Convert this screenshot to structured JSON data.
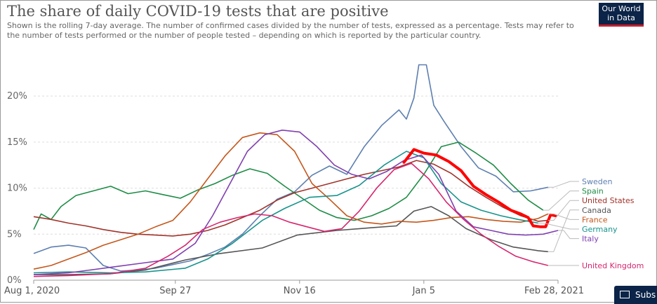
{
  "header": {
    "title": "The share of daily COVID-19 tests that are positive",
    "subtitle": "Shown is the rolling 7-day average. The number of confirmed cases divided by the number of tests, expressed as a percentage. Tests may refer to the number of tests performed or the number of people tested – depending on which is reported by the particular country.",
    "logo": "Our World in Data"
  },
  "subscribe_label": "Subs",
  "chart_data": {
    "type": "line",
    "title": "The share of daily COVID-19 tests that are positive",
    "ylabel": "",
    "xlabel": "",
    "x_range": [
      "2020-08-01",
      "2021-02-28"
    ],
    "x_ticks": [
      {
        "date": "2020-08-01",
        "label": "Aug 1, 2020"
      },
      {
        "date": "2020-09-27",
        "label": "Sep 27"
      },
      {
        "date": "2020-11-16",
        "label": "Nov 16"
      },
      {
        "date": "2021-01-05",
        "label": "Jan 5"
      },
      {
        "date": "2021-02-28",
        "label": "Feb 28, 2021"
      }
    ],
    "y_ticks": [
      {
        "value": 0,
        "label": "0%"
      },
      {
        "value": 5,
        "label": "5%"
      },
      {
        "value": 10,
        "label": "10%"
      },
      {
        "value": 15,
        "label": "15%"
      },
      {
        "value": 20,
        "label": "20%"
      }
    ],
    "ylim": [
      0,
      24.5
    ],
    "grid": true,
    "legend_position": "right",
    "series": [
      {
        "name": "Sweden",
        "color": "#5d7fb0",
        "points": [
          [
            "2020-08-01",
            2.9
          ],
          [
            "2020-08-08",
            3.6
          ],
          [
            "2020-08-15",
            3.8
          ],
          [
            "2020-08-22",
            3.5
          ],
          [
            "2020-08-29",
            1.6
          ],
          [
            "2020-09-05",
            1.0
          ],
          [
            "2020-09-12",
            1.1
          ],
          [
            "2020-09-19",
            1.3
          ],
          [
            "2020-09-26",
            1.7
          ],
          [
            "2020-10-03",
            2.1
          ],
          [
            "2020-10-10",
            2.8
          ],
          [
            "2020-10-17",
            3.6
          ],
          [
            "2020-10-24",
            5.0
          ],
          [
            "2020-10-31",
            7.0
          ],
          [
            "2020-11-07",
            8.8
          ],
          [
            "2020-11-14",
            9.6
          ],
          [
            "2020-11-21",
            11.4
          ],
          [
            "2020-11-28",
            12.4
          ],
          [
            "2020-12-05",
            11.5
          ],
          [
            "2020-12-12",
            14.5
          ],
          [
            "2020-12-19",
            16.8
          ],
          [
            "2020-12-26",
            18.5
          ],
          [
            "2020-12-29",
            17.5
          ],
          [
            "2021-01-01",
            19.8
          ],
          [
            "2021-01-03",
            23.4
          ],
          [
            "2021-01-06",
            23.4
          ],
          [
            "2021-01-09",
            19.0
          ],
          [
            "2021-01-13",
            17.3
          ],
          [
            "2021-01-20",
            14.5
          ],
          [
            "2021-01-27",
            12.2
          ],
          [
            "2021-02-03",
            11.3
          ],
          [
            "2021-02-10",
            9.6
          ],
          [
            "2021-02-17",
            9.7
          ],
          [
            "2021-02-24",
            10.1
          ]
        ]
      },
      {
        "name": "Spain",
        "color": "#1e8c46",
        "points": [
          [
            "2020-08-01",
            5.5
          ],
          [
            "2020-08-04",
            7.2
          ],
          [
            "2020-08-08",
            6.6
          ],
          [
            "2020-08-12",
            8.0
          ],
          [
            "2020-08-18",
            9.2
          ],
          [
            "2020-08-25",
            9.7
          ],
          [
            "2020-09-01",
            10.2
          ],
          [
            "2020-09-08",
            9.4
          ],
          [
            "2020-09-15",
            9.7
          ],
          [
            "2020-09-22",
            9.3
          ],
          [
            "2020-09-29",
            8.9
          ],
          [
            "2020-10-06",
            9.8
          ],
          [
            "2020-10-13",
            10.5
          ],
          [
            "2020-10-20",
            11.4
          ],
          [
            "2020-10-27",
            12.1
          ],
          [
            "2020-11-03",
            11.6
          ],
          [
            "2020-11-10",
            10.2
          ],
          [
            "2020-11-17",
            8.9
          ],
          [
            "2020-11-24",
            7.6
          ],
          [
            "2020-12-01",
            6.8
          ],
          [
            "2020-12-08",
            6.5
          ],
          [
            "2020-12-15",
            7.0
          ],
          [
            "2020-12-22",
            7.8
          ],
          [
            "2020-12-29",
            9.0
          ],
          [
            "2021-01-05",
            11.5
          ],
          [
            "2021-01-12",
            14.5
          ],
          [
            "2021-01-19",
            15.0
          ],
          [
            "2021-01-26",
            13.8
          ],
          [
            "2021-02-02",
            12.5
          ],
          [
            "2021-02-09",
            10.5
          ],
          [
            "2021-02-16",
            8.7
          ],
          [
            "2021-02-22",
            7.6
          ]
        ]
      },
      {
        "name": "United States",
        "color": "#a0342b",
        "points": [
          [
            "2020-08-01",
            6.9
          ],
          [
            "2020-08-08",
            6.6
          ],
          [
            "2020-08-15",
            6.2
          ],
          [
            "2020-08-22",
            5.9
          ],
          [
            "2020-08-29",
            5.5
          ],
          [
            "2020-09-05",
            5.2
          ],
          [
            "2020-09-12",
            5.0
          ],
          [
            "2020-09-19",
            4.9
          ],
          [
            "2020-09-26",
            4.8
          ],
          [
            "2020-10-03",
            5.0
          ],
          [
            "2020-10-10",
            5.4
          ],
          [
            "2020-10-17",
            6.0
          ],
          [
            "2020-10-24",
            6.8
          ],
          [
            "2020-10-31",
            7.6
          ],
          [
            "2020-11-07",
            8.7
          ],
          [
            "2020-11-14",
            9.5
          ],
          [
            "2020-11-21",
            10.0
          ],
          [
            "2020-11-28",
            10.5
          ],
          [
            "2020-12-05",
            11.0
          ],
          [
            "2020-12-12",
            11.5
          ],
          [
            "2020-12-19",
            11.9
          ],
          [
            "2020-12-26",
            12.3
          ],
          [
            "2021-01-02",
            13.0
          ],
          [
            "2021-01-09",
            12.6
          ],
          [
            "2021-01-16",
            11.6
          ],
          [
            "2021-01-23",
            10.2
          ],
          [
            "2021-01-30",
            9.0
          ],
          [
            "2021-02-06",
            7.9
          ],
          [
            "2021-02-13",
            7.0
          ],
          [
            "2021-02-20",
            6.4
          ],
          [
            "2021-02-24",
            6.5
          ]
        ]
      },
      {
        "name": "Canada",
        "color": "#555555",
        "points": [
          [
            "2020-08-01",
            0.6
          ],
          [
            "2020-08-15",
            0.6
          ],
          [
            "2020-09-01",
            0.7
          ],
          [
            "2020-09-15",
            1.1
          ],
          [
            "2020-10-01",
            2.2
          ],
          [
            "2020-10-15",
            2.9
          ],
          [
            "2020-11-01",
            3.5
          ],
          [
            "2020-11-15",
            4.9
          ],
          [
            "2020-12-01",
            5.4
          ],
          [
            "2020-12-15",
            5.7
          ],
          [
            "2020-12-25",
            5.9
          ],
          [
            "2021-01-01",
            7.5
          ],
          [
            "2021-01-08",
            8.0
          ],
          [
            "2021-01-15",
            7.0
          ],
          [
            "2021-01-22",
            5.6
          ],
          [
            "2021-02-01",
            4.4
          ],
          [
            "2021-02-10",
            3.6
          ],
          [
            "2021-02-20",
            3.2
          ],
          [
            "2021-02-24",
            3.1
          ]
        ]
      },
      {
        "name": "France",
        "color": "#c4571c",
        "points": [
          [
            "2020-08-01",
            1.2
          ],
          [
            "2020-08-08",
            1.6
          ],
          [
            "2020-08-15",
            2.3
          ],
          [
            "2020-08-22",
            3.0
          ],
          [
            "2020-08-29",
            3.8
          ],
          [
            "2020-09-05",
            4.4
          ],
          [
            "2020-09-12",
            5.0
          ],
          [
            "2020-09-19",
            5.8
          ],
          [
            "2020-09-26",
            6.5
          ],
          [
            "2020-10-03",
            8.5
          ],
          [
            "2020-10-10",
            11.0
          ],
          [
            "2020-10-17",
            13.5
          ],
          [
            "2020-10-24",
            15.5
          ],
          [
            "2020-10-31",
            16.0
          ],
          [
            "2020-11-07",
            15.8
          ],
          [
            "2020-11-14",
            14.0
          ],
          [
            "2020-11-21",
            10.5
          ],
          [
            "2020-11-28",
            8.8
          ],
          [
            "2020-12-05",
            7.0
          ],
          [
            "2020-12-12",
            6.3
          ],
          [
            "2020-12-19",
            6.1
          ],
          [
            "2020-12-26",
            6.4
          ],
          [
            "2021-01-02",
            6.3
          ],
          [
            "2021-01-09",
            6.5
          ],
          [
            "2021-01-16",
            6.8
          ],
          [
            "2021-01-23",
            6.9
          ],
          [
            "2021-01-30",
            6.6
          ],
          [
            "2021-02-06",
            6.4
          ],
          [
            "2021-02-13",
            6.3
          ],
          [
            "2021-02-20",
            6.7
          ],
          [
            "2021-02-24",
            7.2
          ]
        ]
      },
      {
        "name": "Germany",
        "color": "#17938c",
        "points": [
          [
            "2020-08-01",
            0.8
          ],
          [
            "2020-08-15",
            0.9
          ],
          [
            "2020-09-01",
            0.8
          ],
          [
            "2020-09-15",
            0.9
          ],
          [
            "2020-10-01",
            1.3
          ],
          [
            "2020-10-10",
            2.3
          ],
          [
            "2020-10-20",
            4.0
          ],
          [
            "2020-11-01",
            6.5
          ],
          [
            "2020-11-10",
            7.8
          ],
          [
            "2020-11-20",
            9.0
          ],
          [
            "2020-12-01",
            9.2
          ],
          [
            "2020-12-10",
            10.3
          ],
          [
            "2020-12-20",
            12.5
          ],
          [
            "2020-12-29",
            14.0
          ],
          [
            "2021-01-05",
            13.3
          ],
          [
            "2021-01-12",
            10.5
          ],
          [
            "2021-01-20",
            8.5
          ],
          [
            "2021-01-28",
            7.6
          ],
          [
            "2021-02-05",
            7.0
          ],
          [
            "2021-02-12",
            6.6
          ],
          [
            "2021-02-20",
            6.2
          ]
        ]
      },
      {
        "name": "Italy",
        "color": "#8040b0",
        "points": [
          [
            "2020-08-01",
            0.6
          ],
          [
            "2020-08-15",
            0.8
          ],
          [
            "2020-09-01",
            1.4
          ],
          [
            "2020-09-15",
            1.9
          ],
          [
            "2020-09-26",
            2.3
          ],
          [
            "2020-10-05",
            4.0
          ],
          [
            "2020-10-12",
            7.0
          ],
          [
            "2020-10-19",
            10.5
          ],
          [
            "2020-10-26",
            14.0
          ],
          [
            "2020-11-02",
            15.8
          ],
          [
            "2020-11-09",
            16.3
          ],
          [
            "2020-11-16",
            16.1
          ],
          [
            "2020-11-23",
            14.5
          ],
          [
            "2020-11-30",
            12.5
          ],
          [
            "2020-12-07",
            11.5
          ],
          [
            "2020-12-14",
            11.0
          ],
          [
            "2020-12-21",
            11.8
          ],
          [
            "2020-12-28",
            13.0
          ],
          [
            "2021-01-04",
            13.6
          ],
          [
            "2021-01-11",
            11.5
          ],
          [
            "2021-01-18",
            7.5
          ],
          [
            "2021-01-25",
            5.8
          ],
          [
            "2021-02-01",
            5.4
          ],
          [
            "2021-02-08",
            5.0
          ],
          [
            "2021-02-15",
            4.9
          ],
          [
            "2021-02-22",
            5.0
          ],
          [
            "2021-02-28",
            5.4
          ]
        ]
      },
      {
        "name": "United Kingdom",
        "color": "#d6266e",
        "points": [
          [
            "2020-08-01",
            0.4
          ],
          [
            "2020-08-15",
            0.5
          ],
          [
            "2020-09-01",
            0.7
          ],
          [
            "2020-09-15",
            1.3
          ],
          [
            "2020-09-24",
            2.6
          ],
          [
            "2020-10-01",
            3.8
          ],
          [
            "2020-10-08",
            5.5
          ],
          [
            "2020-10-15",
            6.3
          ],
          [
            "2020-10-22",
            6.8
          ],
          [
            "2020-10-29",
            7.2
          ],
          [
            "2020-11-05",
            7.0
          ],
          [
            "2020-11-12",
            6.3
          ],
          [
            "2020-11-19",
            5.8
          ],
          [
            "2020-11-26",
            5.3
          ],
          [
            "2020-12-03",
            5.6
          ],
          [
            "2020-12-10",
            7.5
          ],
          [
            "2020-12-17",
            10.0
          ],
          [
            "2020-12-24",
            12.0
          ],
          [
            "2020-12-31",
            12.7
          ],
          [
            "2021-01-07",
            11.0
          ],
          [
            "2021-01-14",
            8.5
          ],
          [
            "2021-01-21",
            6.6
          ],
          [
            "2021-01-28",
            5.0
          ],
          [
            "2021-02-04",
            3.7
          ],
          [
            "2021-02-11",
            2.6
          ],
          [
            "2021-02-18",
            2.0
          ],
          [
            "2021-02-24",
            1.6
          ]
        ]
      }
    ],
    "annotation": {
      "color": "#ff0000",
      "points": [
        [
          "2020-12-28",
          12.8
        ],
        [
          "2021-01-01",
          14.2
        ],
        [
          "2021-01-05",
          13.8
        ],
        [
          "2021-01-10",
          13.6
        ],
        [
          "2021-01-15",
          12.9
        ],
        [
          "2021-01-20",
          11.9
        ],
        [
          "2021-01-25",
          10.2
        ],
        [
          "2021-01-30",
          9.3
        ],
        [
          "2021-02-04",
          8.5
        ],
        [
          "2021-02-09",
          7.6
        ],
        [
          "2021-02-13",
          7.2
        ],
        [
          "2021-02-16",
          6.8
        ],
        [
          "2021-02-18",
          5.9
        ],
        [
          "2021-02-21",
          5.8
        ],
        [
          "2021-02-23",
          5.8
        ],
        [
          "2021-02-25",
          7.1
        ],
        [
          "2021-02-27",
          7.0
        ]
      ]
    }
  }
}
